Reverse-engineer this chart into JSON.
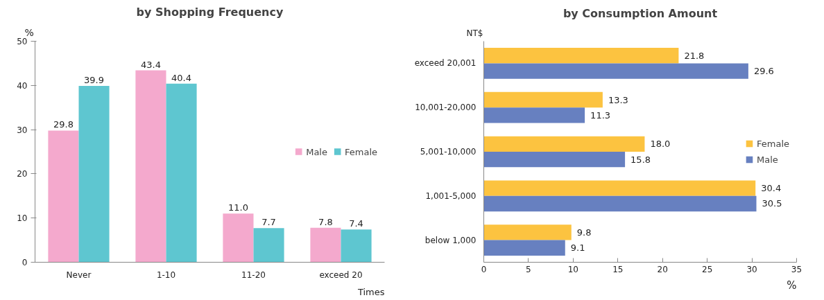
{
  "chart_data": [
    {
      "type": "bar",
      "title": "by Shopping Frequency",
      "ylabel": "%",
      "xlabel": "Times",
      "categories": [
        "Never",
        "1-10",
        "11-20",
        "exceed 20"
      ],
      "series": [
        {
          "name": "Male",
          "color": "#f4a9cd",
          "values": [
            29.8,
            43.4,
            11.0,
            7.8
          ],
          "value_labels": [
            "29.8",
            "43.4",
            "11.0",
            "7.8"
          ]
        },
        {
          "name": "Female",
          "color": "#5ec6d0",
          "values": [
            39.9,
            40.4,
            7.7,
            7.4
          ],
          "value_labels": [
            "39.9",
            "40.4",
            "7.7",
            "7.4"
          ]
        }
      ],
      "ylim": [
        0,
        50
      ],
      "yticks": [
        0,
        10,
        20,
        30,
        40,
        50
      ],
      "grid": false,
      "legend": "right"
    },
    {
      "type": "bar",
      "orientation": "horizontal",
      "title": "by Consumption Amount",
      "ylabel": "NT$",
      "xlabel": "%",
      "categories": [
        "exceed 20,001",
        "10,001-20,000",
        "5,001-10,000",
        "1,001-5,000",
        "below 1,000"
      ],
      "series": [
        {
          "name": "Female",
          "color": "#fcc340",
          "values": [
            21.8,
            13.3,
            18.0,
            30.4,
            9.8
          ],
          "value_labels": [
            "21.8",
            "13.3",
            "18.0",
            "30.4",
            "9.8"
          ]
        },
        {
          "name": "Male",
          "color": "#6780c0",
          "values": [
            29.6,
            11.3,
            15.8,
            30.5,
            9.1
          ],
          "value_labels": [
            "29.6",
            "11.3",
            "15.8",
            "30.5",
            "9.1"
          ]
        }
      ],
      "xlim": [
        0,
        35
      ],
      "xticks": [
        0,
        5,
        10,
        15,
        20,
        25,
        30,
        35
      ],
      "grid": false,
      "legend": "right"
    }
  ]
}
